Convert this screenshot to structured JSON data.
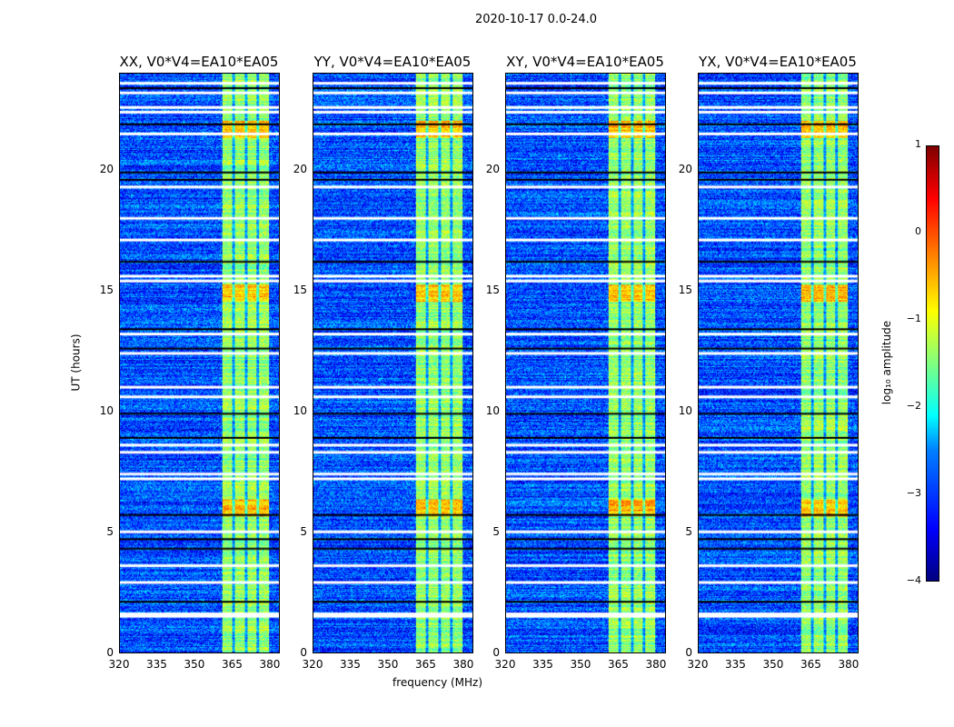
{
  "chart_data": {
    "type": "heatmap",
    "title": "2020-10-17 0.0-24.0",
    "xlabel": "frequency (MHz)",
    "ylabel": "UT (hours)",
    "xlim": [
      320,
      384
    ],
    "ylim": [
      0,
      24
    ],
    "xticks": [
      "320",
      "335",
      "350",
      "365",
      "380"
    ],
    "yticks": [
      "0",
      "5",
      "10",
      "15",
      "20"
    ],
    "panels": [
      {
        "title": "XX, V0*V4=EA10*EA05"
      },
      {
        "title": "YY, V0*V4=EA10*EA05"
      },
      {
        "title": "XY, V0*V4=EA10*EA05"
      },
      {
        "title": "YX, V0*V4=EA10*EA05"
      }
    ],
    "signal_band_mhz": [
      361,
      380
    ],
    "band_gaps_mhz": [
      365.5,
      370.5,
      375.5
    ],
    "background_level": -3,
    "band_level": -1,
    "peak_hours": [
      6.0,
      14.9,
      21.7
    ],
    "flagged_hours_white": [
      1.5,
      1.6,
      2.9,
      3.6,
      5.0,
      7.2,
      7.4,
      8.3,
      8.6,
      10.6,
      11.0,
      12.4,
      13.2,
      15.4,
      15.6,
      17.1,
      18.0,
      19.3,
      21.5,
      22.4,
      22.6,
      23.2,
      23.6
    ],
    "flagged_hours_black": [
      2.1,
      4.3,
      4.7,
      5.7,
      8.9,
      9.9,
      12.6,
      13.4,
      16.2,
      19.6,
      19.9,
      21.9,
      23.4
    ],
    "colorbar": {
      "label": "log₁₀ amplitude",
      "ticks": [
        "1",
        "0",
        "−1",
        "−2",
        "−3",
        "−4"
      ],
      "range": [
        -4,
        1
      ],
      "colormap": "jet"
    }
  }
}
